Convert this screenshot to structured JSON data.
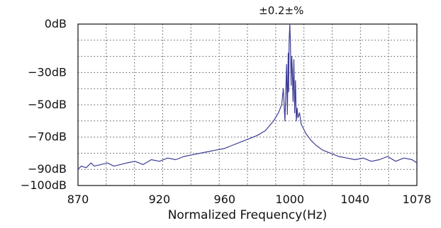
{
  "chart_data": {
    "type": "line",
    "title": "",
    "xlabel": "Normalized Frequency(Hz)",
    "ylabel": "",
    "annotation": "±0.2±%",
    "xlim": [
      870,
      1078
    ],
    "ylim": [
      -100,
      0
    ],
    "grid": true,
    "x_ticks": [
      {
        "value": 870,
        "label": "870"
      },
      {
        "value": 920,
        "label": "920"
      },
      {
        "value": 960,
        "label": "960"
      },
      {
        "value": 1000,
        "label": "1000"
      },
      {
        "value": 1040,
        "label": "1040"
      },
      {
        "value": 1078,
        "label": "1078"
      }
    ],
    "y_ticks": [
      {
        "value": 0,
        "label": "0dB"
      },
      {
        "value": -30,
        "label": "−30dB"
      },
      {
        "value": -50,
        "label": "−50dB"
      },
      {
        "value": -70,
        "label": "−70dB"
      },
      {
        "value": -90,
        "label": "−90dB"
      },
      {
        "value": -100,
        "label": "−100dB"
      }
    ],
    "series": [
      {
        "color": "#3c3c96",
        "x": [
          870,
          872,
          875,
          878,
          880,
          884,
          888,
          892,
          896,
          900,
          905,
          910,
          915,
          920,
          925,
          930,
          935,
          940,
          945,
          950,
          955,
          960,
          965,
          970,
          975,
          980,
          985,
          990,
          993,
          995,
          996,
          997,
          998,
          998.5,
          999,
          999.3,
          999.6,
          1000,
          1000.4,
          1000.8,
          1001.2,
          1001.6,
          1002,
          1002.5,
          1003,
          1003.5,
          1004,
          1004.5,
          1005,
          1006,
          1007,
          1008,
          1010,
          1013,
          1016,
          1020,
          1025,
          1030,
          1035,
          1040,
          1045,
          1050,
          1055,
          1060,
          1065,
          1070,
          1075,
          1078
        ],
        "y": [
          -90,
          -88,
          -89,
          -86,
          -88,
          -87,
          -86,
          -88,
          -87,
          -86,
          -85,
          -87,
          -84,
          -85,
          -83,
          -84,
          -82,
          -81,
          -80,
          -79,
          -78,
          -77,
          -75,
          -73,
          -71,
          -69,
          -66,
          -60,
          -55,
          -50,
          -40,
          -60,
          -25,
          -56,
          -18,
          -42,
          -10,
          0,
          -14,
          -38,
          -20,
          -30,
          -48,
          -22,
          -55,
          -35,
          -60,
          -52,
          -58,
          -55,
          -62,
          -64,
          -68,
          -72,
          -75,
          -78,
          -80,
          -82,
          -83,
          -84,
          -83,
          -85,
          -84,
          -82,
          -85,
          -83,
          -84,
          -86
        ]
      }
    ]
  }
}
